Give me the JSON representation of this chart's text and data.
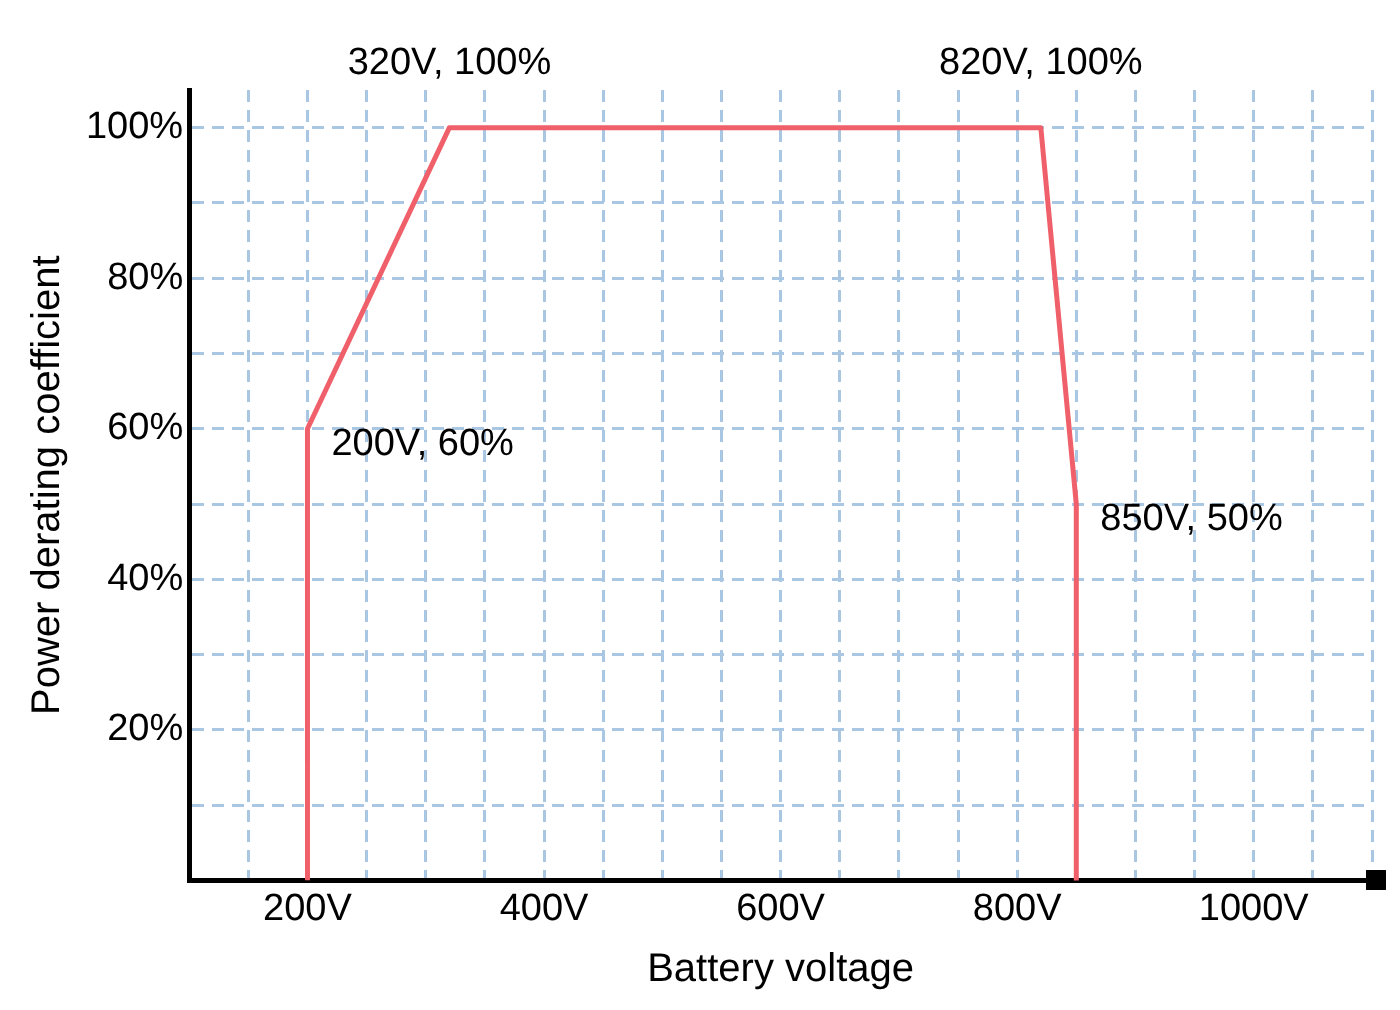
{
  "chart_data": {
    "type": "line",
    "xlabel": "Battery voltage",
    "ylabel": "Power derating coefficient",
    "x": [
      200,
      200,
      320,
      820,
      850,
      850
    ],
    "series": [
      {
        "color": "#f0606a",
        "values": [
          0,
          60,
          100,
          100,
          50,
          0
        ]
      }
    ],
    "xlim": [
      100,
      1100
    ],
    "ylim": [
      0,
      105
    ],
    "xticks": [
      {
        "value": 150,
        "label": null
      },
      {
        "value": 200,
        "label": "200V"
      },
      {
        "value": 250,
        "label": null
      },
      {
        "value": 300,
        "label": null
      },
      {
        "value": 350,
        "label": null
      },
      {
        "value": 400,
        "label": "400V"
      },
      {
        "value": 450,
        "label": null
      },
      {
        "value": 500,
        "label": null
      },
      {
        "value": 550,
        "label": null
      },
      {
        "value": 600,
        "label": "600V"
      },
      {
        "value": 650,
        "label": null
      },
      {
        "value": 700,
        "label": null
      },
      {
        "value": 750,
        "label": null
      },
      {
        "value": 800,
        "label": "800V"
      },
      {
        "value": 850,
        "label": null
      },
      {
        "value": 900,
        "label": null
      },
      {
        "value": 950,
        "label": null
      },
      {
        "value": 1000,
        "label": "1000V"
      },
      {
        "value": 1050,
        "label": null
      },
      {
        "value": 1100,
        "label": null
      }
    ],
    "yticks": [
      {
        "value": 10,
        "label": null
      },
      {
        "value": 20,
        "label": "20%"
      },
      {
        "value": 30,
        "label": null
      },
      {
        "value": 40,
        "label": "40%"
      },
      {
        "value": 50,
        "label": null
      },
      {
        "value": 60,
        "label": "60%"
      },
      {
        "value": 70,
        "label": null
      },
      {
        "value": 80,
        "label": "80%"
      },
      {
        "value": 90,
        "label": null
      },
      {
        "value": 100,
        "label": "100%"
      }
    ],
    "grid": true,
    "line_style": "solid",
    "marker": "none",
    "legend": false,
    "annotations": [
      {
        "text": "320V, 100%",
        "x": 320,
        "y": 100
      },
      {
        "text": "820V, 100%",
        "x": 820,
        "y": 100
      },
      {
        "text": "200V, 60%",
        "x": 200,
        "y": 60
      },
      {
        "text": "850V, 50%",
        "x": 850,
        "y": 50
      }
    ]
  }
}
